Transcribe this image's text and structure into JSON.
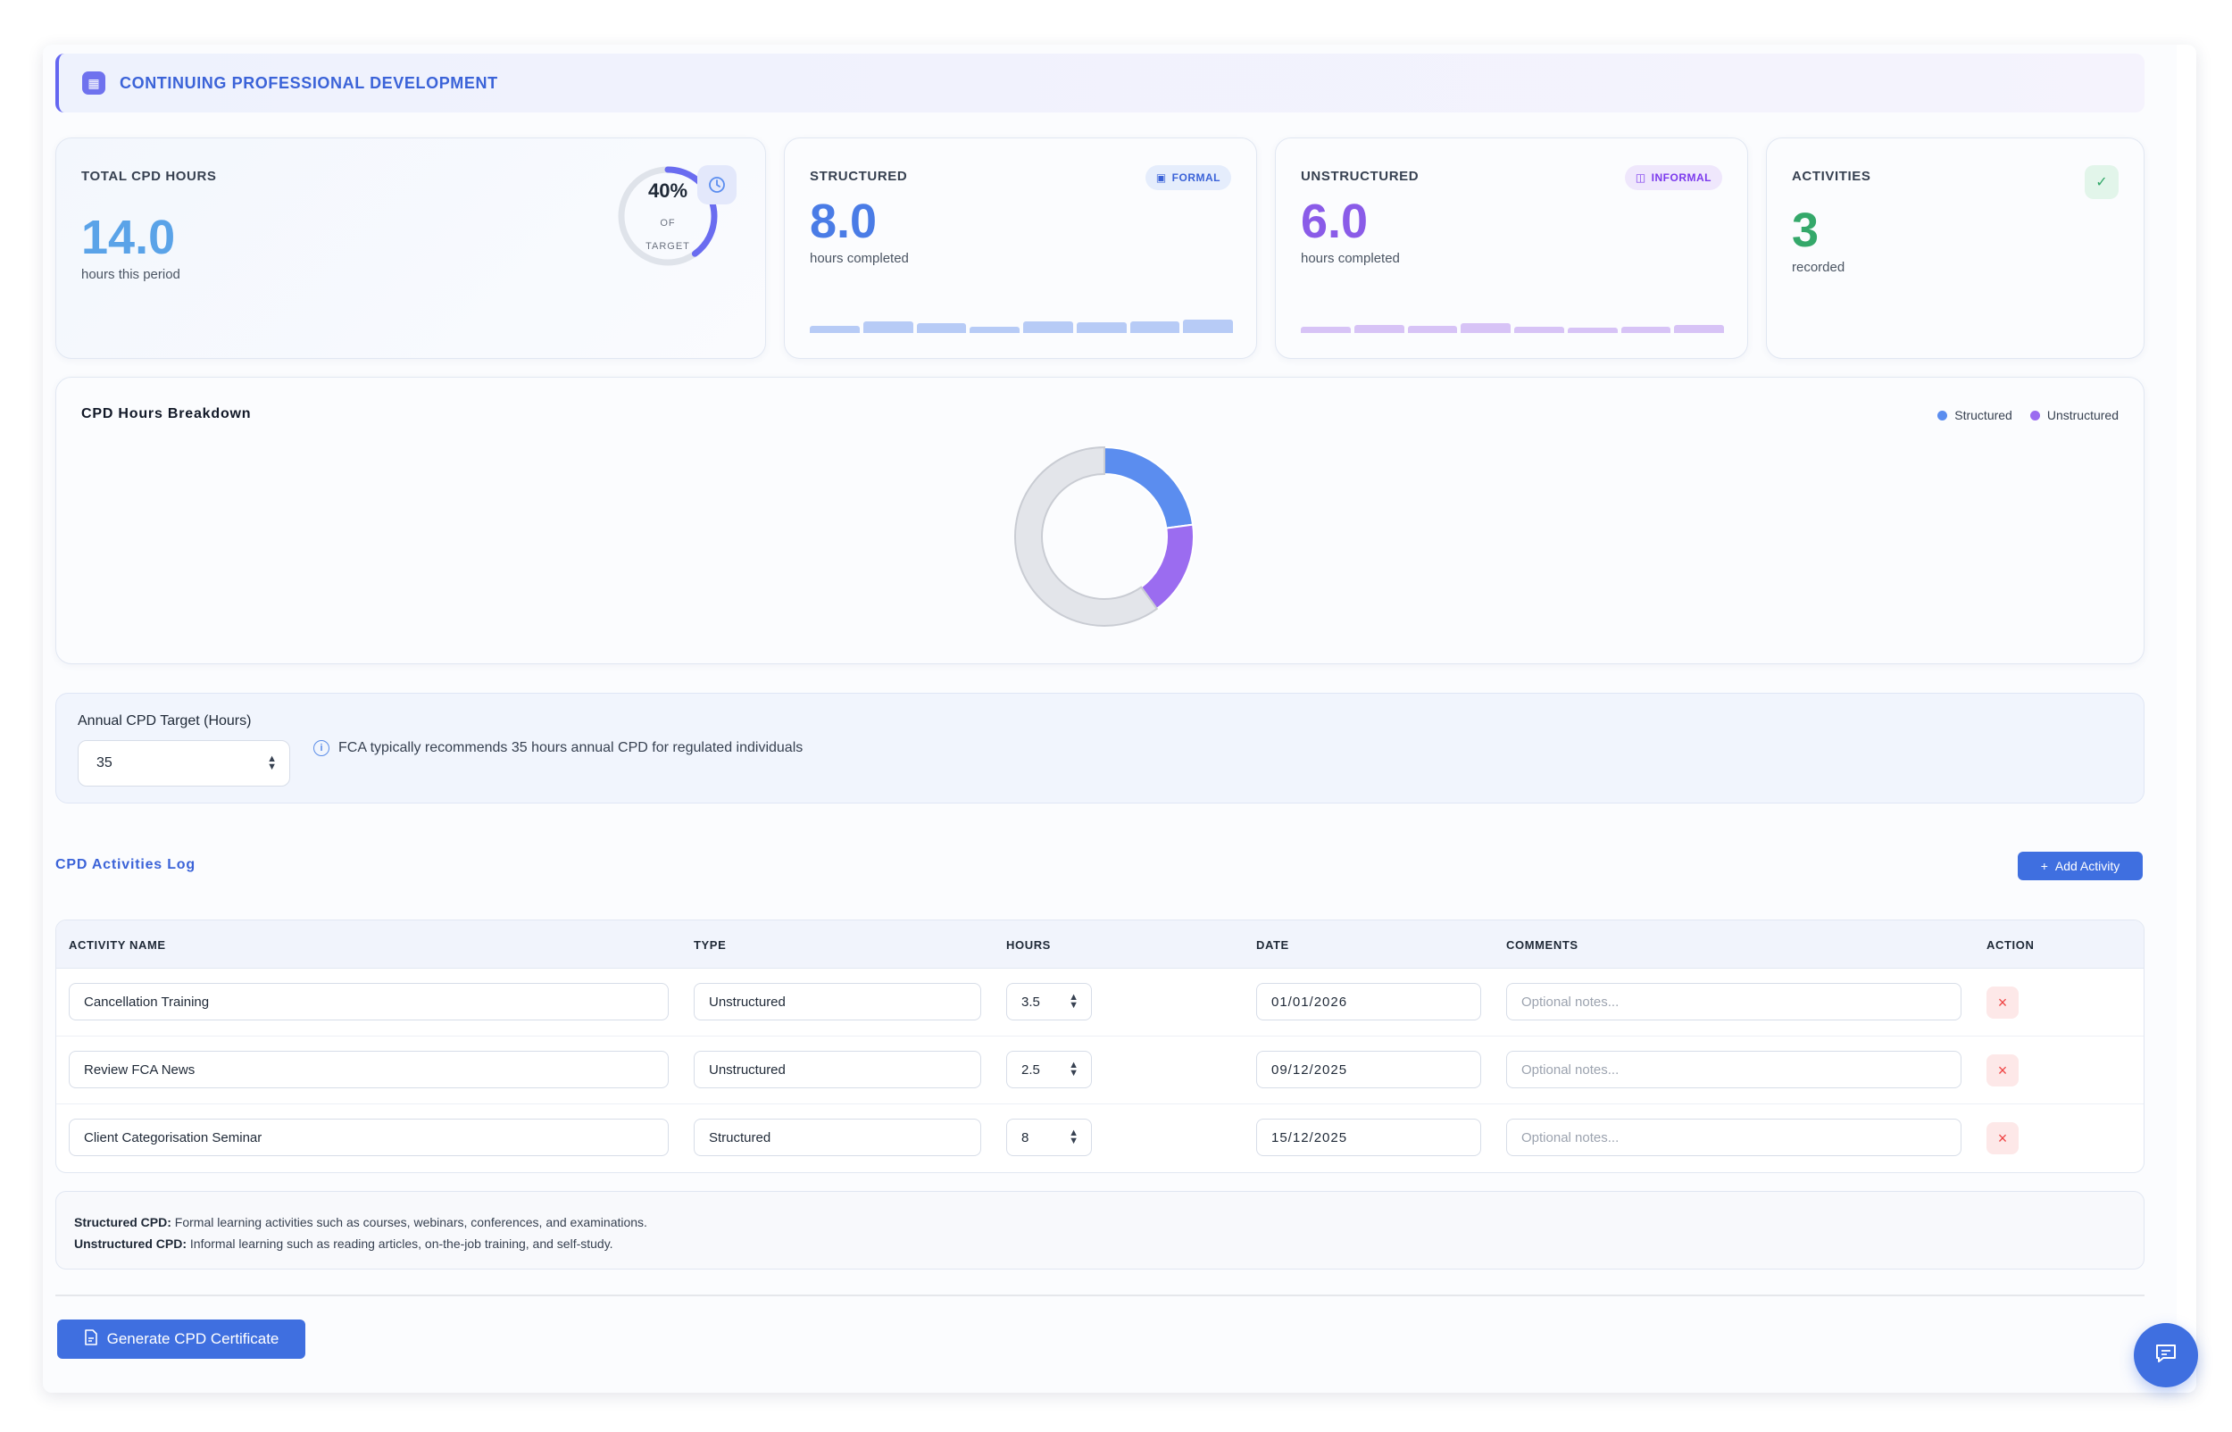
{
  "header": {
    "title": "CONTINUING PROFESSIONAL DEVELOPMENT",
    "icon": "document-icon"
  },
  "stats": {
    "total": {
      "label": "TOTAL CPD HOURS",
      "value": "14.0",
      "sub": "hours this period",
      "ring_percent": "40%",
      "ring_caption_1": "OF",
      "ring_caption_2": "TARGET",
      "ring_fraction": 0.4,
      "icon": "clock-icon"
    },
    "structured": {
      "label": "STRUCTURED",
      "value": "8.0",
      "sub": "hours completed",
      "badge": "FORMAL",
      "badge_icon": "calendar-icon"
    },
    "unstructured": {
      "label": "UNSTRUCTURED",
      "value": "6.0",
      "sub": "hours completed",
      "badge": "INFORMAL",
      "badge_icon": "book-icon"
    },
    "activities": {
      "label": "ACTIVITIES",
      "value": "3",
      "sub": "recorded",
      "icon": "check-icon"
    }
  },
  "colors": {
    "structured": "#5b8def",
    "unstructured": "#9b6cf0",
    "remaining": "#e3e5ea",
    "accent": "#3f6fe0",
    "green": "#34a86a"
  },
  "chart_data": {
    "type": "pie",
    "title": "CPD Hours Breakdown",
    "legend": [
      "Structured",
      "Unstructured"
    ],
    "legend_position": "top-right",
    "series": [
      {
        "name": "Structured",
        "value": 8.0
      },
      {
        "name": "Unstructured",
        "value": 6.0
      }
    ],
    "remaining": 21.0,
    "total_target": 35
  },
  "target": {
    "label": "Annual CPD Target (Hours)",
    "value": "35",
    "info": "FCA typically recommends 35 hours annual CPD for regulated individuals"
  },
  "log": {
    "title": "CPD Activities Log",
    "add_label": "Add Activity",
    "columns": [
      "ACTIVITY NAME",
      "TYPE",
      "HOURS",
      "DATE",
      "COMMENTS",
      "ACTION"
    ],
    "comment_placeholder": "Optional notes...",
    "rows": [
      {
        "name": "Cancellation Training",
        "type": "Unstructured",
        "hours": "3.5",
        "date": "01/01/2026",
        "comments": ""
      },
      {
        "name": "Review FCA News",
        "type": "Unstructured",
        "hours": "2.5",
        "date": "09/12/2025",
        "comments": ""
      },
      {
        "name": "Client Categorisation Seminar",
        "type": "Structured",
        "hours": "8",
        "date": "15/12/2025",
        "comments": ""
      }
    ]
  },
  "notes": {
    "structured_term": "Structured CPD:",
    "structured_text": "Formal learning activities such as courses, webinars, conferences, and examinations.",
    "unstructured_term": "Unstructured CPD:",
    "unstructured_text": "Informal learning such as reading articles, on-the-job training, and self-study."
  },
  "generate_label": "Generate CPD Certificate"
}
